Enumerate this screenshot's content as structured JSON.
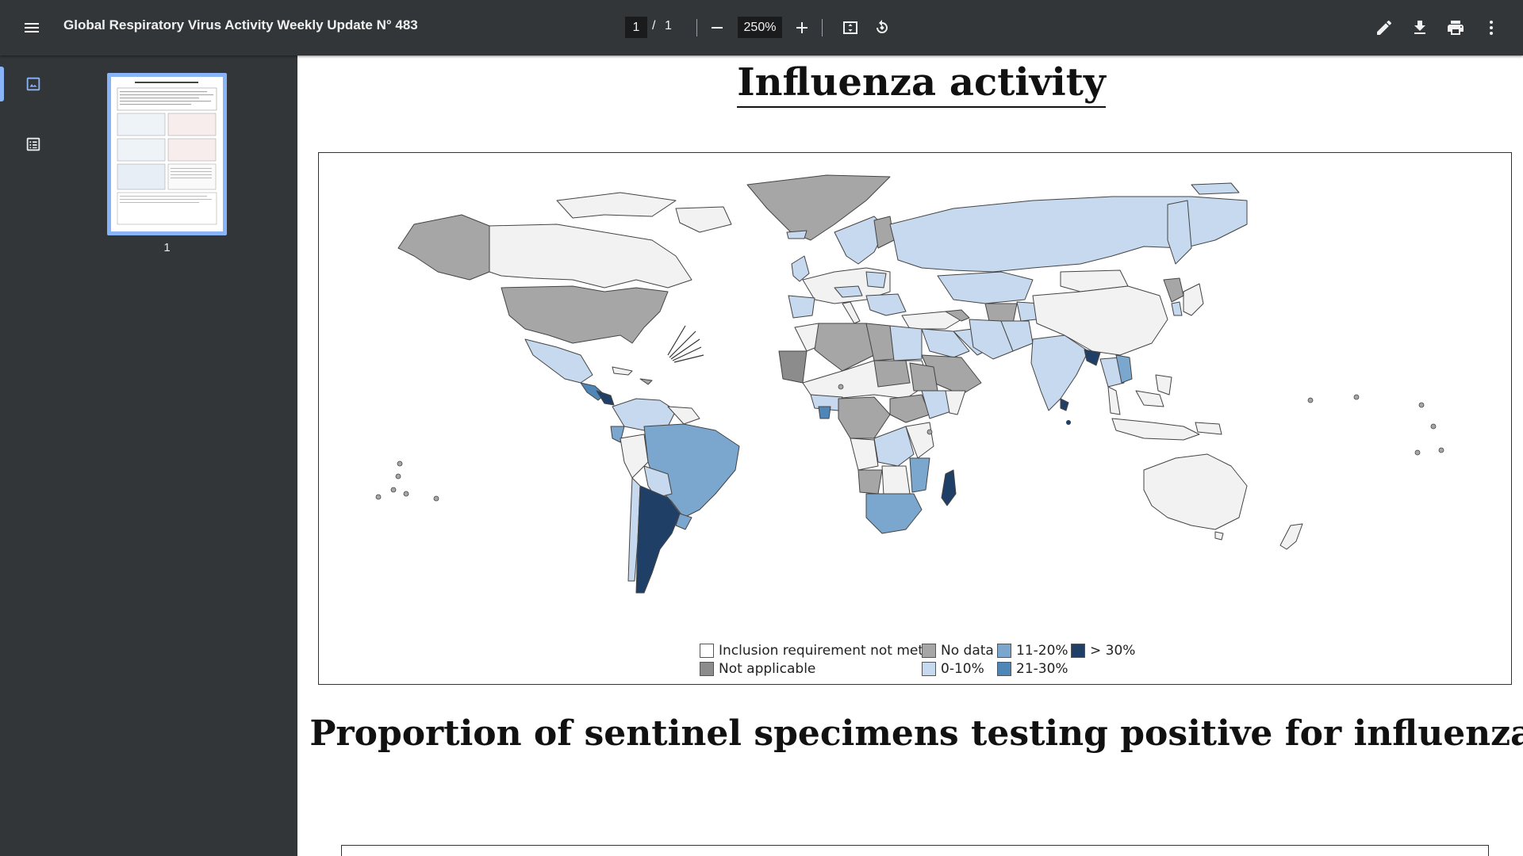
{
  "toolbar": {
    "title": "Global Respiratory Virus Activity Weekly Update N° 483",
    "current_page": "1",
    "page_separator": "/",
    "total_pages": "1",
    "zoom": "250%"
  },
  "sidebar": {
    "thumbnail_label": "1"
  },
  "document": {
    "heading": "Influenza activity",
    "section_heading": "Proportion of sentinel specimens testing positive for influenza",
    "legend": [
      {
        "label": "Inclusion requirement not met",
        "color": "#ffffff"
      },
      {
        "label": "Not applicable",
        "color": "#8c8c8c"
      },
      {
        "label": "No data",
        "color": "#a6a6a6"
      },
      {
        "label": "0-10%",
        "color": "#c6d9ee"
      },
      {
        "label": "11-20%",
        "color": "#7ba7cf"
      },
      {
        "label": "21-30%",
        "color": "#4f86b8"
      },
      {
        "label": "> 30%",
        "color": "#1f3f66"
      }
    ]
  },
  "colors": {
    "toolbar_bg": "#323639",
    "accent": "#8ab4f8",
    "not_met": "#f2f2f2",
    "no_data": "#a6a6a6",
    "c0_10": "#c6d9ee",
    "c11_20": "#7ba7cf",
    "c21_30": "#4f86b8",
    "c30_plus": "#1f3f66"
  }
}
